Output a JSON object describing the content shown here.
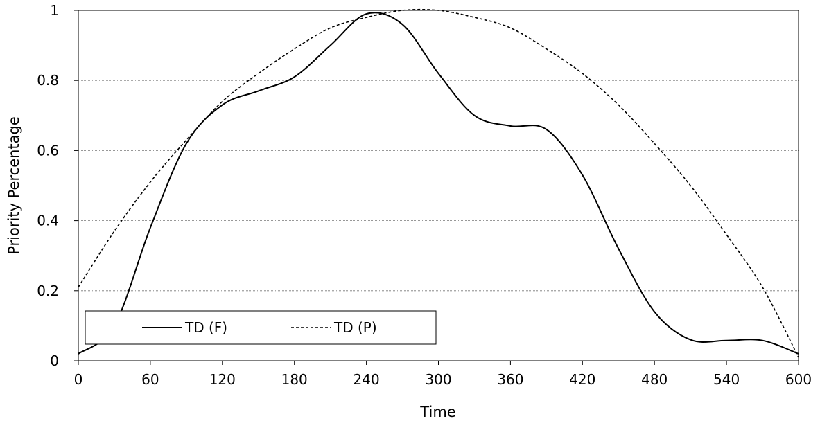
{
  "chart_data": {
    "type": "line",
    "title": "",
    "xlabel": "Time",
    "ylabel": "Priority Percentage",
    "xlim": [
      0,
      600
    ],
    "ylim": [
      0,
      1
    ],
    "xticks": [
      "0",
      "60",
      "120",
      "180",
      "240",
      "300",
      "360",
      "420",
      "480",
      "540",
      "600"
    ],
    "yticks": [
      "0",
      "0.2",
      "0.4",
      "0.6",
      "0.8",
      "1"
    ],
    "grid": "horizontal",
    "legend_position": "bottom-left",
    "series": [
      {
        "name": "TD (F)",
        "style": "solid",
        "color": "#000000",
        "x": [
          0,
          30,
          60,
          90,
          120,
          150,
          180,
          210,
          240,
          270,
          300,
          330,
          360,
          390,
          420,
          450,
          480,
          510,
          540,
          570,
          600
        ],
        "y": [
          0.02,
          0.1,
          0.38,
          0.62,
          0.73,
          0.77,
          0.81,
          0.9,
          0.99,
          0.96,
          0.82,
          0.7,
          0.67,
          0.66,
          0.53,
          0.32,
          0.14,
          0.06,
          0.058,
          0.058,
          0.02
        ]
      },
      {
        "name": "TD (P)",
        "style": "dashed",
        "color": "#000000",
        "x": [
          0,
          30,
          60,
          90,
          120,
          150,
          180,
          210,
          240,
          270,
          300,
          330,
          360,
          390,
          420,
          450,
          480,
          510,
          540,
          570,
          600
        ],
        "y": [
          0.21,
          0.37,
          0.51,
          0.63,
          0.74,
          0.82,
          0.89,
          0.95,
          0.98,
          1.0,
          1.0,
          0.98,
          0.95,
          0.89,
          0.82,
          0.73,
          0.62,
          0.5,
          0.36,
          0.21,
          0.01
        ]
      }
    ]
  }
}
